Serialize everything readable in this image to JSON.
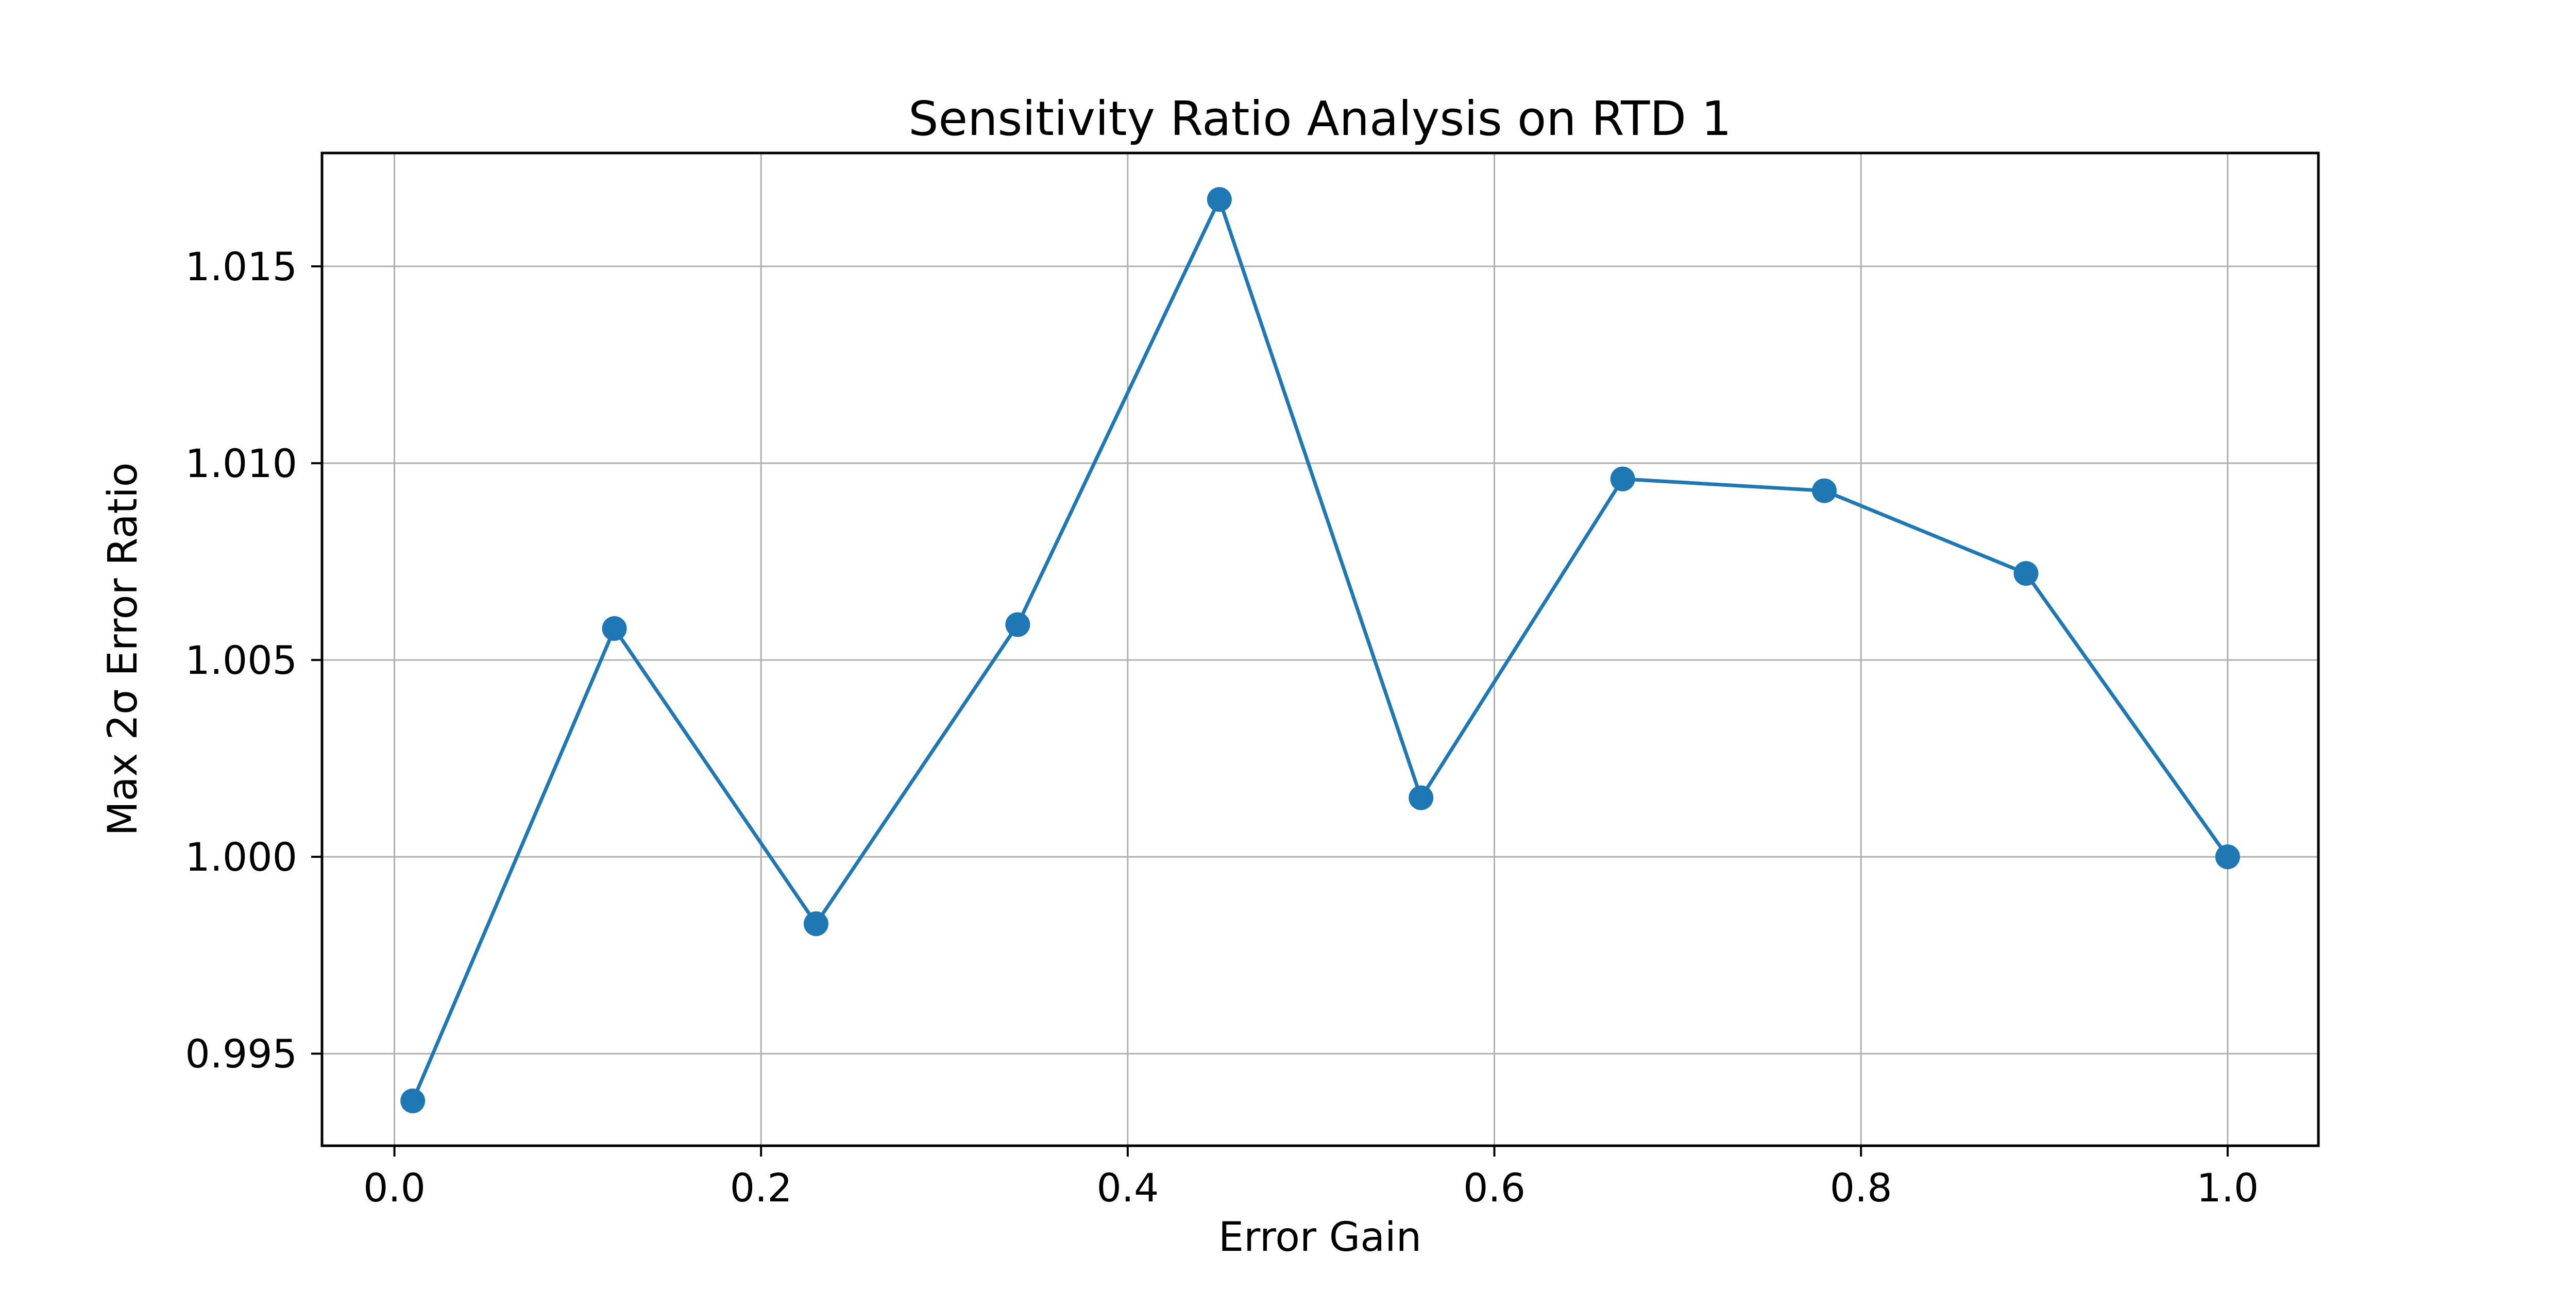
{
  "figure": {
    "background": "#ffffff"
  },
  "chart_data": {
    "type": "line",
    "title": "Sensitivity Ratio Analysis on RTD 1",
    "xlabel": "Error Gain",
    "ylabel": "Max 2σ Error Ratio",
    "x": [
      0.01,
      0.12,
      0.23,
      0.34,
      0.45,
      0.56,
      0.67,
      0.78,
      0.89,
      1.0
    ],
    "y": [
      0.9938,
      1.0058,
      0.9983,
      1.0059,
      1.0167,
      1.0015,
      1.0096,
      1.0093,
      1.0072,
      1.0
    ],
    "xlim": [
      -0.0395,
      1.0495
    ],
    "ylim": [
      0.99266,
      1.01788
    ],
    "xticks": {
      "values": [
        0.0,
        0.2,
        0.4,
        0.6,
        0.8,
        1.0
      ],
      "labels": [
        "0.0",
        "0.2",
        "0.4",
        "0.6",
        "0.8",
        "1.0"
      ]
    },
    "yticks": {
      "values": [
        0.995,
        1.0,
        1.005,
        1.01,
        1.015
      ],
      "labels": [
        "0.995",
        "1.000",
        "1.005",
        "1.010",
        "1.015"
      ]
    },
    "grid": true,
    "legend": null,
    "line_color": "#1f77b4",
    "marker": "circle",
    "grid_color": "#b0b0b0",
    "spine_color": "#000000",
    "text_color": "#000000"
  }
}
